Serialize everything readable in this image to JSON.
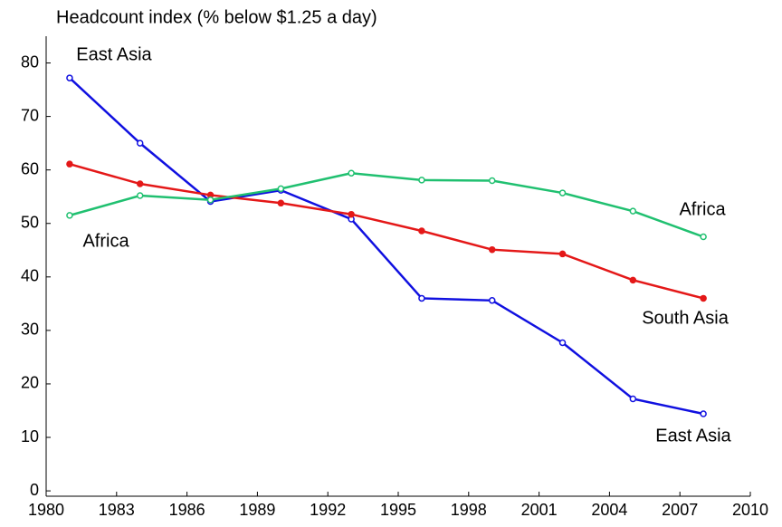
{
  "chart_data": {
    "type": "line",
    "title": "Headcount index (% below $1.25 a day)",
    "x": [
      1981,
      1984,
      1987,
      1990,
      1993,
      1996,
      1999,
      2002,
      2005,
      2008
    ],
    "series": [
      {
        "name": "East Asia",
        "color": "#1010e0",
        "marker": "open",
        "values": [
          77.2,
          65.0,
          54.1,
          56.2,
          50.8,
          36.0,
          35.6,
          27.7,
          17.2,
          14.4
        ]
      },
      {
        "name": "South Asia",
        "color": "#e41818",
        "marker": "filled",
        "values": [
          61.1,
          57.4,
          55.3,
          53.8,
          51.7,
          48.6,
          45.1,
          44.3,
          39.4,
          36.0
        ]
      },
      {
        "name": "Africa",
        "color": "#20c070",
        "marker": "open",
        "values": [
          51.5,
          55.2,
          54.4,
          56.5,
          59.4,
          58.1,
          58.0,
          55.7,
          52.3,
          47.5
        ]
      }
    ],
    "xlim": [
      1980,
      2010
    ],
    "xticks": [
      1980,
      1983,
      1986,
      1989,
      1992,
      1995,
      1998,
      2001,
      2004,
      2007,
      2010
    ],
    "ylim": [
      -1,
      85
    ],
    "yticks": [
      0,
      10,
      20,
      30,
      40,
      50,
      60,
      70,
      80
    ],
    "grid": false
  }
}
